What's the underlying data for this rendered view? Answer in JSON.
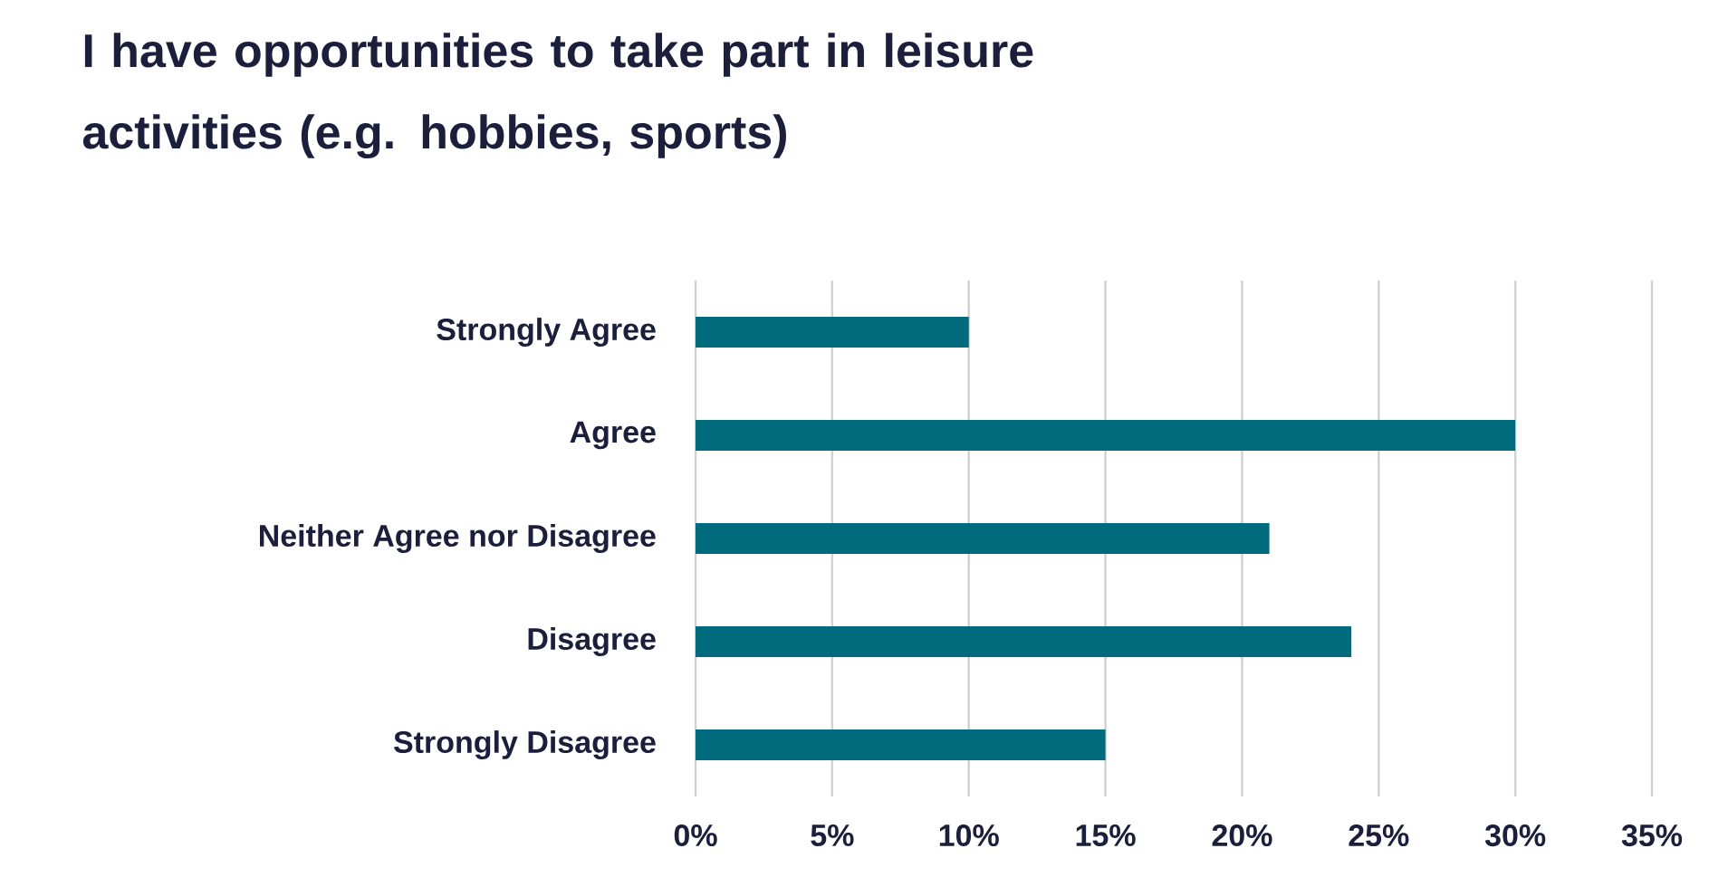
{
  "chart_data": {
    "type": "bar",
    "orientation": "horizontal",
    "title": "I have opportunities to take part in leisure activities (e.g. hobbies, sports)",
    "categories": [
      "Strongly Agree",
      "Agree",
      "Neither Agree nor Disagree",
      "Disagree",
      "Strongly Disagree"
    ],
    "values": [
      10,
      30,
      21,
      24,
      15
    ],
    "color": "#006b7d",
    "xlim": [
      0,
      35
    ],
    "xticks": [
      {
        "value": 0,
        "label": "0%"
      },
      {
        "value": 5,
        "label": "5%"
      },
      {
        "value": 10,
        "label": "10%"
      },
      {
        "value": 15,
        "label": "15%"
      },
      {
        "value": 20,
        "label": "20%"
      },
      {
        "value": 25,
        "label": "25%"
      },
      {
        "value": 30,
        "label": "30%"
      },
      {
        "value": 35,
        "label": "35%"
      }
    ],
    "grid": "x"
  }
}
